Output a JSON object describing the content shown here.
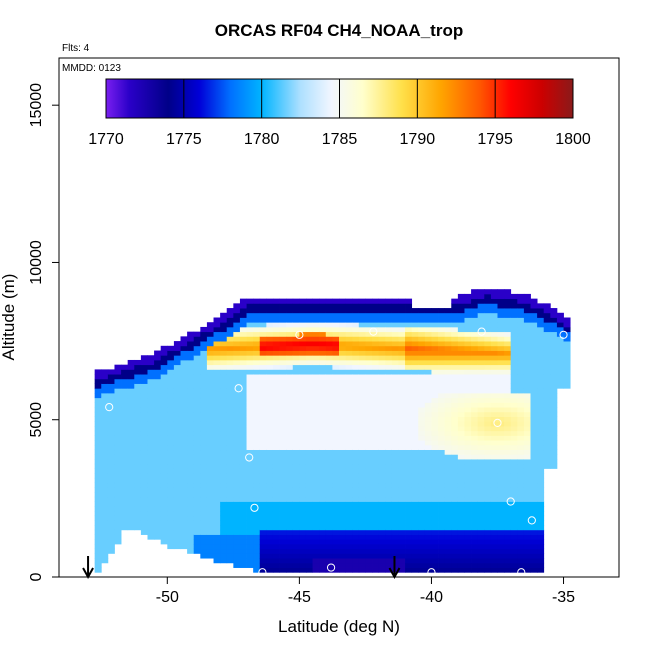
{
  "chart_data": {
    "type": "heatmap",
    "title": "ORCAS RF04 CH4_NOAA_trop",
    "flights_label": "Flts: 4",
    "date_label": "MMDD: 0123",
    "xlabel": "Latitude (deg N)",
    "ylabel": "Altitude (m)",
    "xlim": [
      -54.1,
      -32.9
    ],
    "ylim": [
      0,
      16500
    ],
    "xticks": [
      -50,
      -45,
      -40,
      -35
    ],
    "xtick_labels": [
      "-50",
      "-45",
      "-40",
      "-35"
    ],
    "yticks": [
      0,
      5000,
      10000,
      15000
    ],
    "ytick_labels": [
      "0",
      "5000",
      "10000",
      "15000"
    ],
    "colorbar": {
      "min": 1770,
      "max": 1800,
      "ticks": [
        1770,
        1775,
        1780,
        1785,
        1790,
        1795,
        1800
      ],
      "tick_labels": [
        "1770",
        "1775",
        "1780",
        "1785",
        "1790",
        "1795",
        "1800"
      ],
      "stops": [
        {
          "value": 1770,
          "color": "#7a1ff0"
        },
        {
          "value": 1771.5,
          "color": "#2a00c8"
        },
        {
          "value": 1774,
          "color": "#000088"
        },
        {
          "value": 1776,
          "color": "#0000d8"
        },
        {
          "value": 1778,
          "color": "#0070ff"
        },
        {
          "value": 1780,
          "color": "#00b4ff"
        },
        {
          "value": 1782.5,
          "color": "#aee0ff"
        },
        {
          "value": 1784.5,
          "color": "#f2f6ff"
        },
        {
          "value": 1786.5,
          "color": "#ffffcc"
        },
        {
          "value": 1789,
          "color": "#ffe04a"
        },
        {
          "value": 1791.5,
          "color": "#ffa500"
        },
        {
          "value": 1794,
          "color": "#ff5800"
        },
        {
          "value": 1796,
          "color": "#ff0000"
        },
        {
          "value": 1798,
          "color": "#cc0000"
        },
        {
          "value": 1800,
          "color": "#8b1a1a"
        }
      ]
    },
    "profile_points": [
      {
        "lat": -53.1,
        "alt": 2400
      },
      {
        "lat": -52.2,
        "alt": 5400
      },
      {
        "lat": -47.3,
        "alt": 6000
      },
      {
        "lat": -46.9,
        "alt": 3800
      },
      {
        "lat": -46.7,
        "alt": 2200
      },
      {
        "lat": -46.4,
        "alt": 150
      },
      {
        "lat": -45.0,
        "alt": 7700
      },
      {
        "lat": -43.8,
        "alt": 300
      },
      {
        "lat": -42.2,
        "alt": 7800
      },
      {
        "lat": -40.0,
        "alt": 150
      },
      {
        "lat": -38.1,
        "alt": 7800
      },
      {
        "lat": -37.5,
        "alt": 4900
      },
      {
        "lat": -37.0,
        "alt": 2400
      },
      {
        "lat": -36.6,
        "alt": 150
      },
      {
        "lat": -36.2,
        "alt": 1800
      },
      {
        "lat": -35.0,
        "alt": 7700
      }
    ],
    "arrows_lat": [
      -53.0,
      -41.4
    ]
  }
}
